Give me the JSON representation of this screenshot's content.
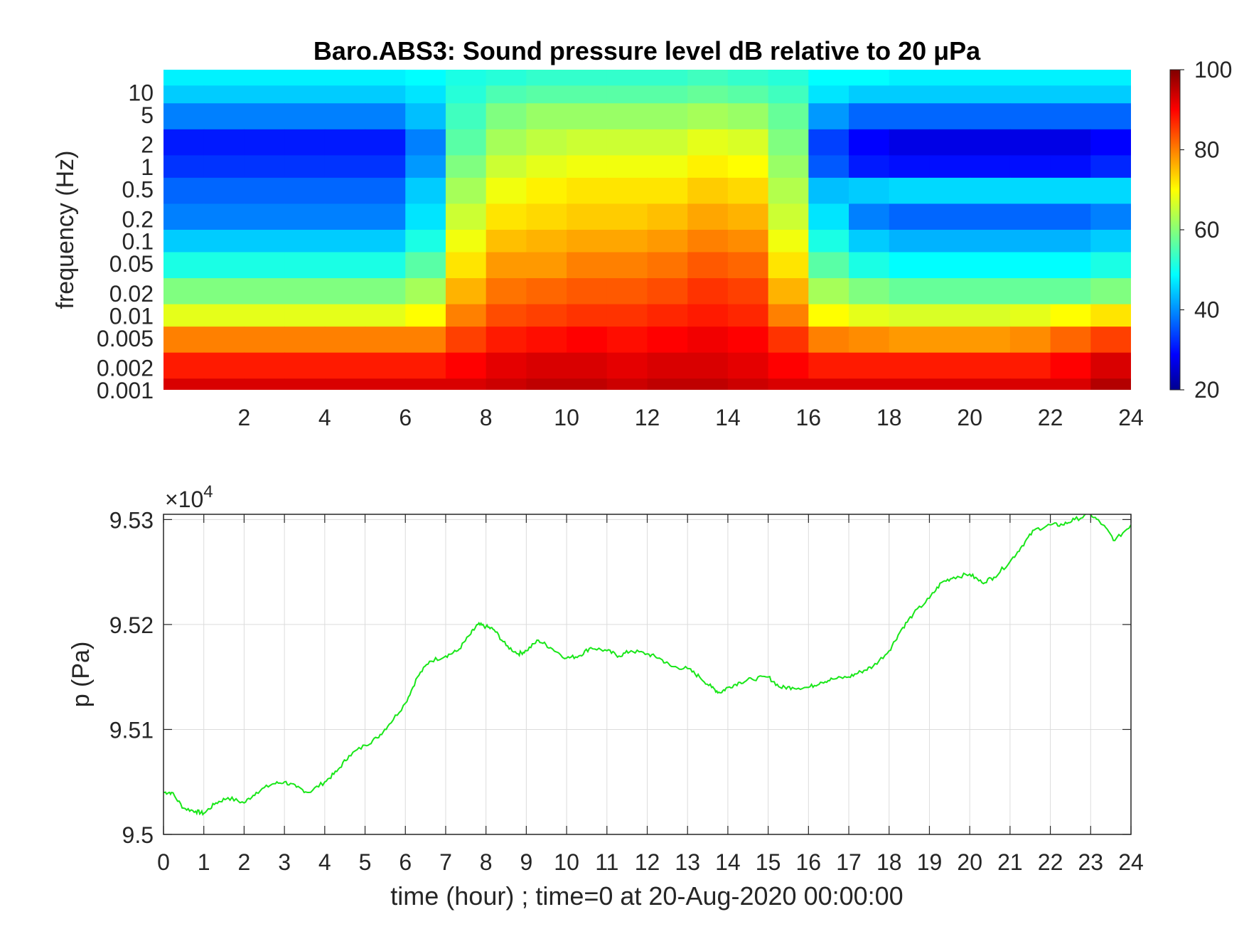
{
  "title": "Baro.ABS3: Sound pressure level dB relative to 20 μPa",
  "spectrogram": {
    "ylabel": "frequency (Hz)",
    "ytick_labels": [
      "10",
      "5",
      "2",
      "1",
      "0.5",
      "0.2",
      "0.1",
      "0.05",
      "0.02",
      "0.01",
      "0.005",
      "0.002",
      "0.001"
    ],
    "xtick_labels": [
      "2",
      "4",
      "6",
      "8",
      "10",
      "12",
      "14",
      "16",
      "18",
      "20",
      "22",
      "24"
    ],
    "colorbar": {
      "ticks": [
        "100",
        "80",
        "60",
        "40",
        "20"
      ],
      "colormap": "jet",
      "range": [
        20,
        100
      ]
    }
  },
  "pressure_panel": {
    "ylabel": "p (Pa)",
    "exponent_label": "×10",
    "exponent_power": "4",
    "ytick_labels": [
      "9.53",
      "9.52",
      "9.51",
      "9.5"
    ],
    "xtick_labels": [
      "0",
      "1",
      "2",
      "3",
      "4",
      "5",
      "6",
      "7",
      "8",
      "9",
      "10",
      "11",
      "12",
      "13",
      "14",
      "15",
      "16",
      "17",
      "18",
      "19",
      "20",
      "21",
      "22",
      "23",
      "24"
    ],
    "xlabel": "time (hour) ; time=0 at 20-Aug-2020 00:00:00",
    "line_color": "#19e619"
  },
  "chart_data": [
    {
      "type": "heatmap",
      "title": "Baro.ABS3: Sound pressure level dB relative to 20 μPa",
      "xlabel": "",
      "ylabel": "frequency (Hz)",
      "xlim": [
        0,
        24
      ],
      "ylim": [
        0.001,
        20
      ],
      "yscale": "log",
      "colorbar_range": [
        20,
        100
      ],
      "colormap": "jet",
      "rows_freq_hz": [
        15,
        10,
        5,
        2,
        1,
        0.5,
        0.2,
        0.1,
        0.05,
        0.02,
        0.01,
        0.005,
        0.002,
        0.001
      ],
      "cols_time_hour": [
        0.5,
        1.5,
        2.5,
        3.5,
        4.5,
        5.5,
        6.5,
        7.5,
        8.5,
        9.5,
        10.5,
        11.5,
        12.5,
        13.5,
        14.5,
        15.5,
        16.5,
        17.5,
        18.5,
        19.5,
        20.5,
        21.5,
        22.5,
        23.5
      ],
      "values_db": [
        [
          49,
          49,
          49,
          49,
          49,
          49,
          50,
          52,
          53,
          54,
          54,
          54,
          54,
          55,
          54,
          53,
          50,
          50,
          49,
          49,
          49,
          49,
          49,
          49
        ],
        [
          46,
          46,
          46,
          46,
          46,
          46,
          48,
          53,
          56,
          57,
          57,
          57,
          57,
          58,
          57,
          55,
          48,
          46,
          46,
          46,
          46,
          46,
          46,
          46
        ],
        [
          40,
          40,
          40,
          40,
          40,
          40,
          45,
          55,
          60,
          62,
          62,
          62,
          62,
          63,
          62,
          58,
          42,
          38,
          38,
          38,
          38,
          38,
          38,
          38
        ],
        [
          32,
          32,
          32,
          32,
          32,
          32,
          40,
          57,
          63,
          65,
          66,
          66,
          66,
          68,
          67,
          60,
          35,
          30,
          28,
          28,
          28,
          28,
          28,
          30
        ],
        [
          34,
          34,
          34,
          34,
          34,
          34,
          42,
          60,
          66,
          68,
          69,
          69,
          69,
          71,
          70,
          62,
          37,
          32,
          31,
          31,
          31,
          31,
          31,
          33
        ],
        [
          38,
          38,
          38,
          38,
          38,
          38,
          46,
          63,
          69,
          71,
          72,
          72,
          72,
          74,
          73,
          64,
          45,
          46,
          47,
          47,
          47,
          47,
          47,
          47
        ],
        [
          40,
          40,
          40,
          40,
          40,
          40,
          48,
          66,
          72,
          73,
          74,
          74,
          75,
          77,
          76,
          66,
          48,
          40,
          38,
          38,
          38,
          38,
          38,
          40
        ],
        [
          46,
          46,
          46,
          46,
          46,
          46,
          52,
          69,
          75,
          76,
          77,
          77,
          78,
          80,
          79,
          69,
          52,
          46,
          44,
          44,
          44,
          44,
          44,
          46
        ],
        [
          52,
          52,
          52,
          52,
          52,
          52,
          57,
          72,
          78,
          78,
          80,
          80,
          81,
          83,
          82,
          72,
          57,
          52,
          50,
          50,
          50,
          50,
          50,
          52
        ],
        [
          60,
          60,
          60,
          60,
          60,
          60,
          63,
          76,
          81,
          82,
          83,
          83,
          84,
          86,
          85,
          76,
          63,
          60,
          58,
          58,
          58,
          58,
          58,
          60
        ],
        [
          68,
          68,
          68,
          68,
          68,
          68,
          70,
          80,
          84,
          85,
          86,
          86,
          87,
          88,
          87,
          80,
          70,
          68,
          67,
          67,
          67,
          68,
          70,
          72
        ],
        [
          80,
          80,
          80,
          80,
          80,
          80,
          80,
          85,
          88,
          89,
          90,
          89,
          90,
          91,
          90,
          86,
          80,
          79,
          78,
          78,
          78,
          79,
          82,
          85
        ],
        [
          88,
          88,
          88,
          88,
          88,
          88,
          88,
          90,
          92,
          93,
          93,
          92,
          93,
          93,
          92,
          90,
          88,
          88,
          88,
          88,
          88,
          88,
          90,
          93
        ],
        [
          93,
          93,
          93,
          93,
          93,
          93,
          93,
          93,
          94,
          95,
          95,
          94,
          95,
          95,
          94,
          93,
          93,
          93,
          93,
          93,
          93,
          93,
          93,
          96
        ]
      ]
    },
    {
      "type": "line",
      "title": "",
      "xlabel": "time (hour) ; time=0 at 20-Aug-2020 00:00:00",
      "ylabel": "p (Pa)",
      "xlim": [
        0,
        24
      ],
      "ylim": [
        95000,
        95305
      ],
      "grid": true,
      "series": [
        {
          "color": "#19e619",
          "x": [
            0,
            0.2,
            0.5,
            0.8,
            1,
            1.3,
            1.6,
            2,
            2.3,
            2.7,
            3,
            3.3,
            3.6,
            4,
            4.3,
            4.6,
            5,
            5.3,
            5.6,
            6,
            6.3,
            6.6,
            7,
            7.3,
            7.6,
            7.8,
            8,
            8.2,
            8.5,
            8.8,
            9,
            9.3,
            9.6,
            10,
            10.3,
            10.6,
            11,
            11.3,
            11.6,
            12,
            12.3,
            12.6,
            13,
            13.3,
            13.6,
            13.8,
            14,
            14.3,
            14.6,
            15,
            15.3,
            15.6,
            16,
            16.3,
            16.6,
            17,
            17.3,
            17.6,
            18,
            18.3,
            18.6,
            19,
            19.3,
            19.6,
            20,
            20.3,
            20.6,
            21,
            21.3,
            21.6,
            22,
            22.3,
            22.6,
            23,
            23.3,
            23.6,
            24
          ],
          "y": [
            95040,
            95040,
            95025,
            95022,
            95020,
            95030,
            95035,
            95030,
            95040,
            95048,
            95050,
            95045,
            95040,
            95050,
            95060,
            95075,
            95085,
            95092,
            95105,
            95125,
            95150,
            95165,
            95170,
            95175,
            95190,
            95200,
            95198,
            95195,
            95180,
            95172,
            95175,
            95185,
            95178,
            95168,
            95170,
            95178,
            95175,
            95170,
            95175,
            95172,
            95168,
            95160,
            95158,
            95150,
            95140,
            95135,
            95140,
            95145,
            95148,
            95150,
            95140,
            95140,
            95140,
            95145,
            95148,
            95150,
            95155,
            95160,
            95175,
            95195,
            95210,
            95225,
            95240,
            95245,
            95248,
            95240,
            95245,
            95260,
            95275,
            95290,
            95295,
            95295,
            95300,
            95305,
            95295,
            95280,
            95295
          ]
        }
      ]
    }
  ]
}
